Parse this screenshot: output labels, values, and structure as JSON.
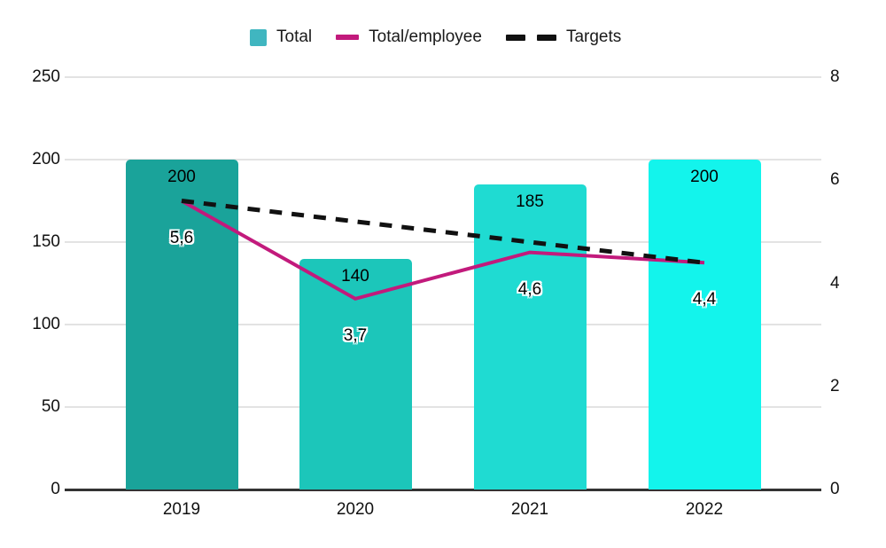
{
  "chart_data": {
    "type": "combo",
    "categories": [
      "2019",
      "2020",
      "2021",
      "2022"
    ],
    "series": [
      {
        "name": "Total",
        "type": "bar",
        "axis": "left",
        "values": [
          200,
          140,
          185,
          200
        ],
        "labels": [
          "200",
          "140",
          "185",
          "200"
        ],
        "bar_colors": [
          "#1aa39a",
          "#1cc6ba",
          "#1fdbd2",
          "#13f4ec"
        ]
      },
      {
        "name": "Total/employee",
        "type": "line",
        "axis": "right",
        "values": [
          5.6,
          3.7,
          4.6,
          4.4
        ],
        "labels": [
          "5,6",
          "3,7",
          "4,6",
          "4,4"
        ],
        "color": "#c21a7c"
      },
      {
        "name": "Targets",
        "type": "line",
        "dashed": true,
        "axis": "right",
        "values": [
          5.6,
          5.2,
          4.8,
          4.4
        ],
        "labels": [],
        "color": "#111111"
      }
    ],
    "left_axis": {
      "min": 0,
      "max": 250,
      "ticks": [
        250,
        200,
        150,
        100,
        50,
        0
      ]
    },
    "right_axis": {
      "min": 0,
      "max": 8,
      "ticks": [
        8,
        6,
        4,
        2,
        0
      ]
    },
    "grid": true,
    "legend_position": "top"
  },
  "legend": {
    "items": [
      {
        "label": "Total",
        "swatch": "square",
        "color": "#40b6c0"
      },
      {
        "label": "Total/employee",
        "swatch": "line",
        "color": "#c21a7c"
      },
      {
        "label": "Targets",
        "swatch": "dashed",
        "color": "#111111"
      }
    ]
  }
}
